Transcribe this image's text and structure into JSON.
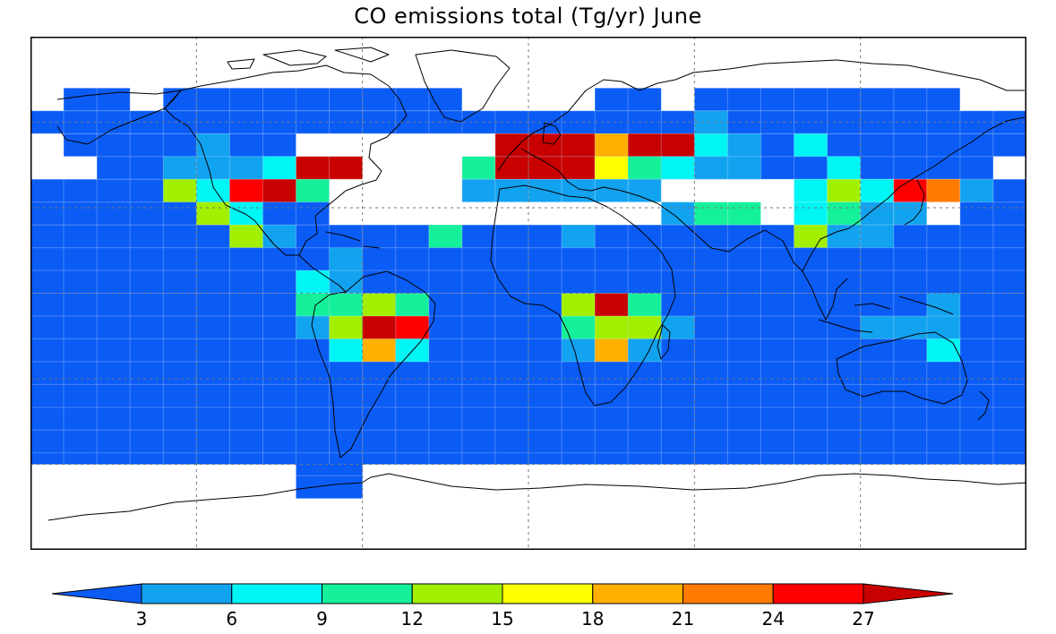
{
  "title": "CO emissions total (Tg/yr)  June",
  "colorbar": {
    "ticks": [
      3,
      6,
      9,
      12,
      15,
      18,
      21,
      24,
      27
    ],
    "tick_labels": [
      "3",
      "6",
      "9",
      "12",
      "15",
      "18",
      "21",
      "24",
      "27"
    ],
    "colors": [
      "#0a5cf5",
      "#11a3f0",
      "#00f5f5",
      "#14f19a",
      "#a2f000",
      "#ffff00",
      "#ffb000",
      "#ff7a00",
      "#ff0000",
      "#c80000"
    ]
  },
  "grid": {
    "lon_step": 12,
    "lat_step": 8,
    "lon_range": [
      -180,
      180
    ],
    "lat_range": [
      -90,
      90
    ]
  },
  "map_data": {
    "type": "heatmap",
    "cell_width_deg": 12,
    "cell_height_deg": 8,
    "default_fill": "#0a5cf5",
    "blue_bands": [
      {
        "lat": [
          -60,
          24
        ],
        "lon": [
          -180,
          180
        ]
      },
      {
        "lat": [
          56,
          64
        ],
        "lon": [
          -180,
          180
        ]
      },
      {
        "lat": [
          40,
          56
        ],
        "lon": [
          -156,
          -84
        ]
      },
      {
        "lat": [
          40,
          56
        ],
        "lon": [
          -12,
          168
        ]
      },
      {
        "lat": [
          24,
          40
        ],
        "lon": [
          -180,
          -180
        ]
      },
      {
        "lat": [
          -72,
          -60
        ],
        "lon": [
          -84,
          -60
        ]
      },
      {
        "lat": [
          64,
          72
        ],
        "lon": [
          -168,
          -144
        ]
      },
      {
        "lat": [
          64,
          72
        ],
        "lon": [
          -132,
          -24
        ]
      },
      {
        "lat": [
          64,
          72
        ],
        "lon": [
          24,
          48
        ]
      },
      {
        "lat": [
          64,
          72
        ],
        "lon": [
          60,
          156
        ]
      },
      {
        "lat": [
          48,
          56
        ],
        "lon": [
          -168,
          -156
        ]
      },
      {
        "lat": [
          48,
          56
        ],
        "lon": [
          168,
          180
        ]
      }
    ],
    "blue_cells_extra": [
      {
        "lon": -180,
        "lat": 24,
        "w": 108,
        "h": 16
      },
      {
        "lon": 156,
        "lat": 24,
        "w": 24,
        "h": 16
      },
      {
        "lon": -180,
        "lat": 40,
        "w": 0,
        "h": 0
      }
    ],
    "cells": [
      {
        "lon": -120,
        "lat": 48,
        "v": 5
      },
      {
        "lon": -132,
        "lat": 40,
        "v": 5
      },
      {
        "lon": -120,
        "lat": 40,
        "v": 5
      },
      {
        "lon": -108,
        "lat": 40,
        "v": 5
      },
      {
        "lon": -96,
        "lat": 40,
        "v": 8
      },
      {
        "lon": -84,
        "lat": 40,
        "v": 27
      },
      {
        "lon": -72,
        "lat": 40,
        "v": 28
      },
      {
        "lon": -132,
        "lat": 32,
        "v": 13
      },
      {
        "lon": -120,
        "lat": 32,
        "v": 8
      },
      {
        "lon": -108,
        "lat": 32,
        "v": 25
      },
      {
        "lon": -96,
        "lat": 32,
        "v": 28
      },
      {
        "lon": -84,
        "lat": 32,
        "v": 10
      },
      {
        "lon": -120,
        "lat": 24,
        "v": 14
      },
      {
        "lon": -108,
        "lat": 24,
        "v": 7
      },
      {
        "lon": -108,
        "lat": 16,
        "v": 14
      },
      {
        "lon": -96,
        "lat": 16,
        "v": 5
      },
      {
        "lon": -72,
        "lat": 8,
        "v": 5
      },
      {
        "lon": -72,
        "lat": 0,
        "v": 5
      },
      {
        "lon": -84,
        "lat": 0,
        "v": 7
      },
      {
        "lon": -84,
        "lat": -8,
        "v": 10
      },
      {
        "lon": -72,
        "lat": -8,
        "v": 11
      },
      {
        "lon": -60,
        "lat": -8,
        "v": 14
      },
      {
        "lon": -48,
        "lat": -8,
        "v": 10
      },
      {
        "lon": -84,
        "lat": -16,
        "v": 5
      },
      {
        "lon": -72,
        "lat": -16,
        "v": 13
      },
      {
        "lon": -60,
        "lat": -16,
        "v": 28
      },
      {
        "lon": -48,
        "lat": -16,
        "v": 26
      },
      {
        "lon": -72,
        "lat": -24,
        "v": 7
      },
      {
        "lon": -60,
        "lat": -24,
        "v": 20
      },
      {
        "lon": -48,
        "lat": -24,
        "v": 7
      },
      {
        "lon": -12,
        "lat": 48,
        "v": 28
      },
      {
        "lon": 0,
        "lat": 48,
        "v": 28
      },
      {
        "lon": 12,
        "lat": 48,
        "v": 28
      },
      {
        "lon": 24,
        "lat": 48,
        "v": 20
      },
      {
        "lon": 36,
        "lat": 48,
        "v": 28
      },
      {
        "lon": 48,
        "lat": 48,
        "v": 27
      },
      {
        "lon": 60,
        "lat": 48,
        "v": 8
      },
      {
        "lon": 72,
        "lat": 48,
        "v": 5
      },
      {
        "lon": 96,
        "lat": 48,
        "v": 8
      },
      {
        "lon": -24,
        "lat": 40,
        "v": 10
      },
      {
        "lon": -12,
        "lat": 40,
        "v": 27
      },
      {
        "lon": 0,
        "lat": 40,
        "v": 27
      },
      {
        "lon": 12,
        "lat": 40,
        "v": 28
      },
      {
        "lon": 24,
        "lat": 40,
        "v": 17
      },
      {
        "lon": 36,
        "lat": 40,
        "v": 10
      },
      {
        "lon": 48,
        "lat": 40,
        "v": 7
      },
      {
        "lon": 60,
        "lat": 40,
        "v": 5
      },
      {
        "lon": 72,
        "lat": 40,
        "v": 5
      },
      {
        "lon": 108,
        "lat": 40,
        "v": 7
      },
      {
        "lon": -24,
        "lat": 32,
        "v": 5
      },
      {
        "lon": -12,
        "lat": 32,
        "v": 5
      },
      {
        "lon": 0,
        "lat": 32,
        "v": 5
      },
      {
        "lon": 12,
        "lat": 32,
        "v": 5
      },
      {
        "lon": 24,
        "lat": 32,
        "v": 5
      },
      {
        "lon": 36,
        "lat": 32,
        "v": 5
      },
      {
        "lon": 96,
        "lat": 32,
        "v": 7
      },
      {
        "lon": 108,
        "lat": 32,
        "v": 13
      },
      {
        "lon": 120,
        "lat": 32,
        "v": 7
      },
      {
        "lon": 132,
        "lat": 32,
        "v": 26
      },
      {
        "lon": 144,
        "lat": 32,
        "v": 23
      },
      {
        "lon": 156,
        "lat": 32,
        "v": 5
      },
      {
        "lon": 48,
        "lat": 24,
        "v": 5
      },
      {
        "lon": 60,
        "lat": 24,
        "v": 11
      },
      {
        "lon": 72,
        "lat": 24,
        "v": 11
      },
      {
        "lon": 96,
        "lat": 24,
        "v": 7
      },
      {
        "lon": 108,
        "lat": 24,
        "v": 10
      },
      {
        "lon": 120,
        "lat": 24,
        "v": 5
      },
      {
        "lon": 132,
        "lat": 24,
        "v": 5
      },
      {
        "lon": -36,
        "lat": 16,
        "v": 10
      },
      {
        "lon": 12,
        "lat": 16,
        "v": 5
      },
      {
        "lon": 96,
        "lat": 16,
        "v": 14
      },
      {
        "lon": 108,
        "lat": 16,
        "v": 5
      },
      {
        "lon": 120,
        "lat": 16,
        "v": 5
      },
      {
        "lon": 12,
        "lat": -8,
        "v": 14
      },
      {
        "lon": 24,
        "lat": -8,
        "v": 28
      },
      {
        "lon": 36,
        "lat": -8,
        "v": 11
      },
      {
        "lon": 12,
        "lat": -16,
        "v": 11
      },
      {
        "lon": 24,
        "lat": -16,
        "v": 13
      },
      {
        "lon": 36,
        "lat": -16,
        "v": 13
      },
      {
        "lon": 48,
        "lat": -16,
        "v": 5
      },
      {
        "lon": 12,
        "lat": -24,
        "v": 5
      },
      {
        "lon": 24,
        "lat": -24,
        "v": 20
      },
      {
        "lon": 36,
        "lat": -24,
        "v": 5
      },
      {
        "lon": 144,
        "lat": -8,
        "v": 5
      },
      {
        "lon": 120,
        "lat": -16,
        "v": 5
      },
      {
        "lon": 132,
        "lat": -16,
        "v": 5
      },
      {
        "lon": 144,
        "lat": -16,
        "v": 5
      },
      {
        "lon": 144,
        "lat": -24,
        "v": 8
      },
      {
        "lon": 60,
        "lat": 56,
        "v": 5
      }
    ]
  }
}
